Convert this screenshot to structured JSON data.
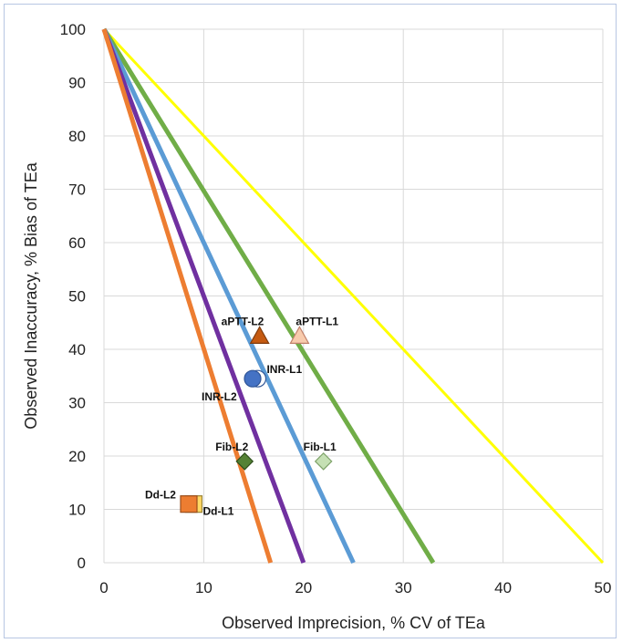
{
  "chart_data": {
    "type": "scatter",
    "title": "",
    "xlabel": "Observed Imprecision, % CV of TEa",
    "ylabel": "Observed Inaccuracy, % Bias of TEa",
    "xlim": [
      0,
      50
    ],
    "ylim": [
      0,
      100
    ],
    "x_ticks": [
      0,
      10,
      20,
      30,
      40,
      50
    ],
    "y_ticks": [
      0,
      10,
      20,
      30,
      40,
      50,
      60,
      70,
      80,
      90,
      100
    ],
    "grid": true,
    "legend": "none",
    "lines": [
      {
        "color": "#ff0000",
        "stroke": "#ffff00",
        "x": [
          0,
          50
        ],
        "y": [
          100,
          0
        ]
      },
      {
        "stroke": "#70ad47",
        "x": [
          0,
          33
        ],
        "y": [
          100,
          0
        ]
      },
      {
        "stroke": "#5b9bd5",
        "x": [
          0,
          25
        ],
        "y": [
          100,
          0
        ]
      },
      {
        "stroke": "#7030a0",
        "x": [
          0,
          20
        ],
        "y": [
          100,
          0
        ]
      },
      {
        "stroke": "#ed7d31",
        "x": [
          0,
          16.7
        ],
        "y": [
          100,
          0
        ]
      }
    ],
    "points": [
      {
        "label": "aPTT-L2",
        "x": 15.6,
        "y": 42.5,
        "marker": "triangle",
        "fill": "#c55a11",
        "stroke": "#7f3b0c"
      },
      {
        "label": "aPTT-L1",
        "x": 19.6,
        "y": 42.5,
        "marker": "triangle",
        "fill": "#f8cbad",
        "stroke": "#c0806a"
      },
      {
        "label": "INR-L1",
        "x": 15.4,
        "y": 34.5,
        "marker": "circle",
        "fill": "#ffffff",
        "stroke": "#2f5597"
      },
      {
        "label": "INR-L2",
        "x": 14.9,
        "y": 34.5,
        "marker": "circle",
        "fill": "#4472c4",
        "stroke": "#2f5597"
      },
      {
        "label": "Fib-L2",
        "x": 14.1,
        "y": 19,
        "marker": "diamond",
        "fill": "#548235",
        "stroke": "#2e4f1c"
      },
      {
        "label": "Fib-L1",
        "x": 22,
        "y": 19,
        "marker": "diamond",
        "fill": "#c5e0b4",
        "stroke": "#7fa36a"
      },
      {
        "label": "Dd-L1",
        "x": 9,
        "y": 11,
        "marker": "square",
        "fill": "#ffd966",
        "stroke": "#9c8536"
      },
      {
        "label": "Dd-L2",
        "x": 8.5,
        "y": 11,
        "marker": "square",
        "fill": "#ed7d31",
        "stroke": "#9c4f1c"
      }
    ]
  }
}
